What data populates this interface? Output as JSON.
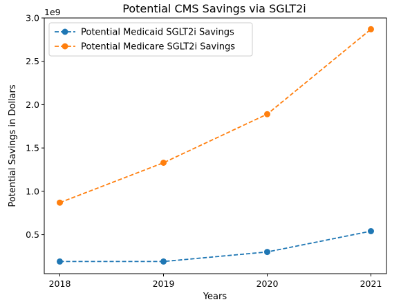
{
  "chart_data": {
    "type": "line",
    "title": "Potential CMS Savings via SGLT2i",
    "xlabel": "Years",
    "ylabel": "Potential Savings in Dollars",
    "y_offset_label": "1e9",
    "x": [
      "2018",
      "2019",
      "2020",
      "2021"
    ],
    "xlim": [
      2017.85,
      2021.15
    ],
    "ylim": [
      0.05,
      3.0
    ],
    "y_ticks": [
      0.5,
      1.0,
      1.5,
      2.0,
      2.5,
      3.0
    ],
    "y_tick_labels": [
      "0.5",
      "1.0",
      "1.5",
      "2.0",
      "2.5",
      "3.0"
    ],
    "y_scale_note": "values in units of 1e9 dollars",
    "grid": false,
    "legend_position": "top-left",
    "series": [
      {
        "name": "Potential Medicaid SGLT2i Savings",
        "color": "#1f77b4",
        "line_style": "dashed",
        "marker": "circle",
        "values": [
          0.19,
          0.19,
          0.3,
          0.54
        ]
      },
      {
        "name": "Potential Medicare SGLT2i Savings",
        "color": "#ff7f0e",
        "line_style": "dashed",
        "marker": "circle",
        "values": [
          0.87,
          1.33,
          1.89,
          2.87
        ]
      }
    ]
  }
}
